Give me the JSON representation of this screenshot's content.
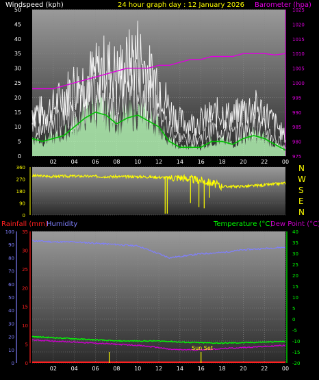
{
  "header": {
    "wind_title": "Windspeed (kph)",
    "main_title": "24 hour graph day : 12 January 2026",
    "baro_title": "Barometer (hpa)",
    "rain_title": "Rainfall (mm)",
    "humidity_title": "Humidity",
    "temp_title": "Temperature (°C)",
    "dew_title": "Dew Point (°C)",
    "sunset_label": "Sun Set"
  },
  "colors": {
    "title": "#ffff00",
    "wind": "#ffffff",
    "gust": "#ffffff",
    "wind_avg": "#00c000",
    "wind_fill": "#b0f0b0",
    "baro": "#e000e0",
    "direction": "#ffff00",
    "rain": "#ff2020",
    "humidity": "#8080ff",
    "temperature": "#00ff00",
    "dewpoint": "#cc00cc",
    "sunset": "#ffff00"
  },
  "x_ticks": [
    "02",
    "04",
    "06",
    "08",
    "10",
    "12",
    "14",
    "16",
    "18",
    "20",
    "22",
    "00"
  ],
  "compass_letters": [
    "N",
    "W",
    "S",
    "E",
    "N"
  ],
  "chart_data": [
    {
      "type": "line",
      "name": "wind-chart",
      "x_hours": [
        0,
        1,
        2,
        3,
        4,
        5,
        6,
        7,
        8,
        9,
        10,
        11,
        12,
        13,
        14,
        15,
        16,
        17,
        18,
        19,
        20,
        21,
        22,
        23,
        24
      ],
      "series": [
        {
          "name": "Windspeed (kph)",
          "axis": "left",
          "values": [
            12,
            11,
            12,
            13,
            17,
            20,
            22,
            24,
            20,
            24,
            27,
            22,
            19,
            10,
            7,
            6,
            7,
            10,
            10,
            8,
            10,
            12,
            10,
            7,
            3
          ]
        },
        {
          "name": "gust",
          "axis": "left",
          "values": [
            17,
            16,
            18,
            22,
            26,
            28,
            30,
            33,
            30,
            33,
            38,
            30,
            28,
            17,
            13,
            12,
            13,
            15,
            16,
            14,
            17,
            18,
            16,
            12,
            7
          ]
        },
        {
          "name": "average",
          "axis": "left",
          "values": [
            6,
            5,
            6,
            7,
            10,
            13,
            15,
            14,
            11,
            13,
            14,
            12,
            10,
            5,
            3,
            3,
            3,
            5,
            5,
            4,
            6,
            7,
            6,
            4,
            2
          ]
        },
        {
          "name": "Barometer (hpa)",
          "axis": "right",
          "values": [
            998,
            998,
            998,
            999,
            1000,
            1001,
            1002,
            1003,
            1004,
            1005,
            1005,
            1005,
            1006,
            1006,
            1007,
            1008,
            1008,
            1009,
            1009,
            1009,
            1010,
            1010,
            1010,
            1009.5,
            1010
          ]
        }
      ],
      "y_left": {
        "min": 0,
        "max": 50,
        "ticks": [
          0,
          5,
          10,
          15,
          20,
          25,
          30,
          35,
          40,
          45,
          50
        ]
      },
      "y_right": {
        "min": 975,
        "max": 1025,
        "ticks": [
          975,
          980,
          985,
          990,
          995,
          1000,
          1005,
          1010,
          1015,
          1020,
          1025
        ]
      }
    },
    {
      "type": "line",
      "name": "direction-chart",
      "x_hours": [
        0,
        2,
        4,
        6,
        8,
        10,
        12,
        13,
        14,
        15,
        16,
        17,
        18,
        20,
        22,
        24
      ],
      "values": [
        295,
        290,
        292,
        290,
        288,
        288,
        284,
        280,
        282,
        270,
        260,
        240,
        215,
        215,
        225,
        240
      ],
      "spikes": [
        {
          "hour": 12.6,
          "value": 10
        },
        {
          "hour": 12.8,
          "value": 10
        },
        {
          "hour": 15.0,
          "value": 90
        },
        {
          "hour": 15.8,
          "value": 60
        },
        {
          "hour": 16.3,
          "value": 50
        },
        {
          "hour": 16.8,
          "value": 130
        }
      ],
      "y": {
        "min": 0,
        "max": 360,
        "ticks": [
          0,
          90,
          180,
          270,
          360
        ]
      }
    },
    {
      "type": "line",
      "name": "temp-chart",
      "x_hours": [
        0,
        2,
        4,
        6,
        8,
        10,
        12,
        13,
        14,
        16,
        18,
        20,
        22,
        24
      ],
      "series": [
        {
          "name": "Humidity",
          "axis": "left",
          "values": [
            93,
            92,
            92,
            91,
            90,
            89,
            83,
            80,
            81,
            83,
            84,
            86,
            87,
            88
          ]
        },
        {
          "name": "Temperature (°C)",
          "axis": "right",
          "values": [
            -8,
            -8.5,
            -9,
            -9.5,
            -10,
            -10,
            -10,
            -10.2,
            -10.5,
            -10.8,
            -11,
            -10.8,
            -10.5,
            -10.2
          ]
        },
        {
          "name": "Dew Point (°C)",
          "axis": "right",
          "values": [
            -9.5,
            -10,
            -10.5,
            -11,
            -11.5,
            -12,
            -13,
            -13.8,
            -14,
            -14,
            -13.5,
            -13,
            -12.5,
            -12
          ]
        },
        {
          "name": "Rainfall (mm)",
          "axis": "rain",
          "values": [
            0,
            0,
            0,
            0,
            0,
            0,
            0,
            0,
            0,
            0,
            0,
            0,
            0,
            0
          ]
        }
      ],
      "markers": [
        {
          "hour": 7.3
        },
        {
          "hour": 16.0
        }
      ],
      "y_humidity": {
        "min": 0,
        "max": 100,
        "ticks": [
          0,
          10,
          20,
          30,
          40,
          50,
          60,
          70,
          80,
          90,
          100
        ]
      },
      "y_rain": {
        "min": 0,
        "max": 35,
        "ticks": [
          0,
          5,
          10,
          15,
          20,
          25,
          30,
          35
        ]
      },
      "y_temp": {
        "min": -20,
        "max": 40,
        "ticks": [
          -20,
          -15,
          -10,
          -5,
          0,
          5,
          10,
          15,
          20,
          25,
          30,
          35,
          40
        ]
      }
    }
  ]
}
